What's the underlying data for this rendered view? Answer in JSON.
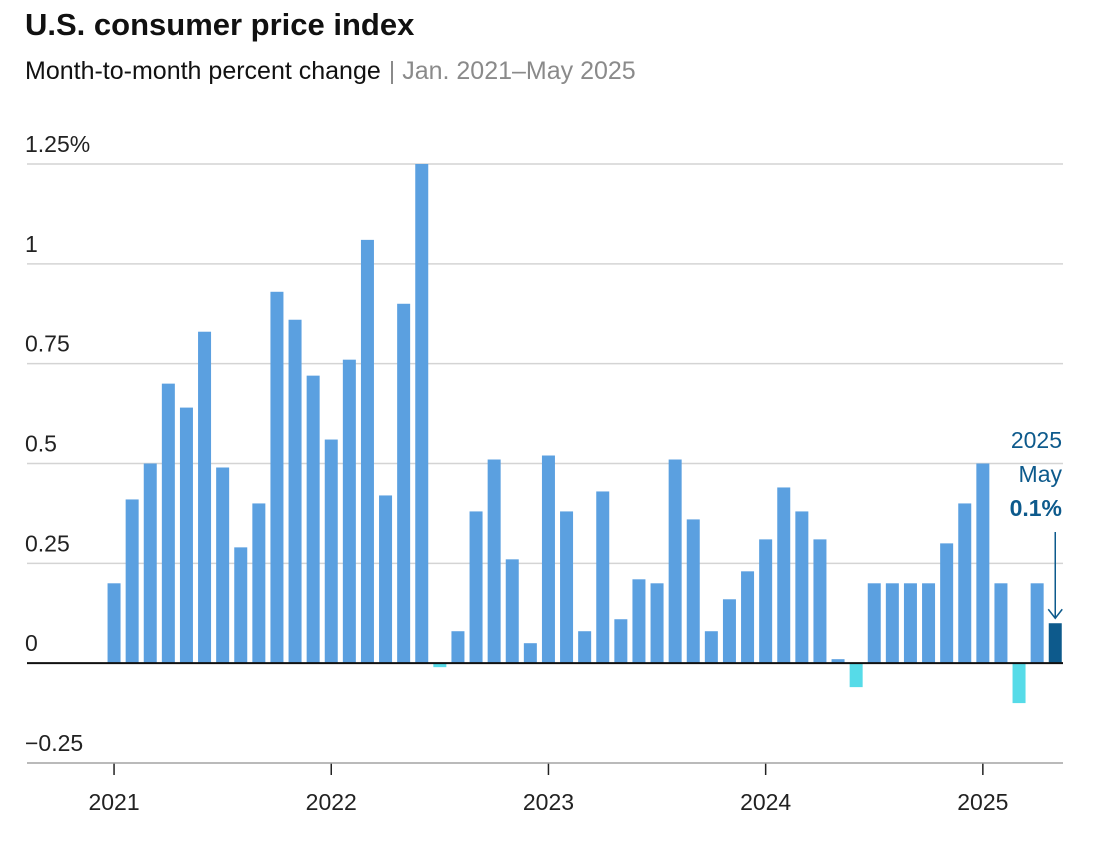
{
  "chart_data": {
    "type": "bar",
    "title": "U.S. consumer price index",
    "subtitle": "Month-to-month percent change",
    "subtitle_range": "| Jan. 2021–May 2025",
    "categories": [
      "2021",
      null,
      null,
      null,
      null,
      null,
      null,
      null,
      null,
      null,
      null,
      null,
      "2022",
      null,
      null,
      null,
      null,
      null,
      null,
      null,
      null,
      null,
      null,
      null,
      "2023",
      null,
      null,
      null,
      null,
      null,
      null,
      null,
      null,
      null,
      null,
      null,
      "2024",
      null,
      null,
      null,
      null,
      null,
      null,
      null,
      null,
      null,
      null,
      null,
      "2025",
      null,
      null,
      null,
      null
    ],
    "values": [
      0.2,
      0.41,
      0.5,
      0.7,
      0.64,
      0.83,
      0.49,
      0.29,
      0.4,
      0.93,
      0.86,
      0.72,
      0.56,
      0.76,
      1.06,
      0.42,
      0.9,
      1.25,
      -0.01,
      0.08,
      0.38,
      0.51,
      0.26,
      0.05,
      0.52,
      0.38,
      0.08,
      0.43,
      0.11,
      0.21,
      0.2,
      0.51,
      0.36,
      0.08,
      0.16,
      0.23,
      0.31,
      0.44,
      0.38,
      0.31,
      0.01,
      -0.06,
      0.2,
      0.2,
      0.2,
      0.2,
      0.3,
      0.4,
      0.5,
      0.2,
      -0.1,
      0.2,
      0.1
    ],
    "color": "#5ba0e0",
    "negative_color": "#56dbe8",
    "highlight_color": "#0d5a8c",
    "annotation": {
      "lines": [
        "2025",
        "May"
      ],
      "value_label": "0.1%"
    },
    "ylim": [
      -0.25,
      1.25
    ],
    "yticks": [
      {
        "value": -0.25,
        "label": "−0.25"
      },
      0,
      0.25,
      0.5,
      0.75,
      1,
      {
        "value": 1.25,
        "label": "1.25%"
      }
    ],
    "grid": true
  }
}
